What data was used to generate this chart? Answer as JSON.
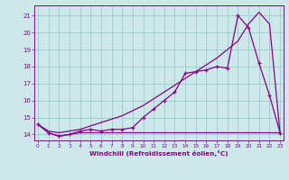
{
  "x": [
    0,
    1,
    2,
    3,
    4,
    5,
    6,
    7,
    8,
    9,
    10,
    11,
    12,
    13,
    14,
    15,
    16,
    17,
    18,
    19,
    20,
    21,
    22,
    23
  ],
  "flat_line": [
    14.6,
    14.1,
    13.9,
    14.0,
    14.1,
    14.1,
    14.1,
    14.1,
    14.1,
    14.1,
    14.1,
    14.1,
    14.1,
    14.1,
    14.1,
    14.1,
    14.1,
    14.1,
    14.1,
    14.1,
    14.1,
    14.1,
    14.1,
    14.1
  ],
  "actual_line": [
    14.6,
    14.1,
    13.9,
    14.0,
    14.2,
    14.3,
    14.2,
    14.3,
    14.3,
    14.4,
    15.0,
    15.5,
    16.0,
    16.5,
    17.6,
    17.7,
    17.8,
    18.0,
    17.9,
    21.0,
    20.3,
    18.2,
    16.3,
    14.1
  ],
  "diagonal_line": [
    14.6,
    14.2,
    14.1,
    14.2,
    14.3,
    14.5,
    14.7,
    14.9,
    15.1,
    15.4,
    15.7,
    16.1,
    16.5,
    16.9,
    17.3,
    17.7,
    18.1,
    18.5,
    19.0,
    19.5,
    20.5,
    21.2,
    20.5,
    14.1
  ],
  "bg_color": "#cce8e8",
  "line_color": "#880088",
  "grid_color": "#99cccc",
  "ylabel_ticks": [
    14,
    15,
    16,
    17,
    18,
    19,
    20,
    21
  ],
  "xlabel_ticks": [
    0,
    1,
    2,
    3,
    4,
    5,
    6,
    7,
    8,
    9,
    10,
    11,
    12,
    13,
    14,
    15,
    16,
    17,
    18,
    19,
    20,
    21,
    22,
    23
  ],
  "ylim": [
    13.65,
    21.6
  ],
  "xlim": [
    -0.3,
    23.3
  ],
  "xlabel": "Windchill (Refroidissement éolien,°C)"
}
